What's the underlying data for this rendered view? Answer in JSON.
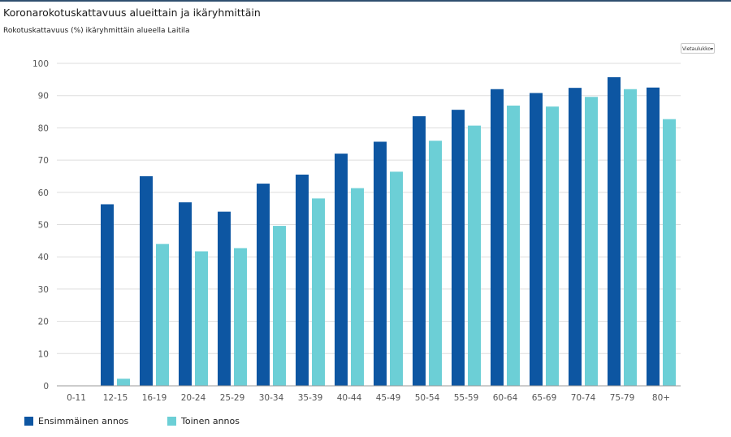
{
  "page_title": "Koronarokotuskattavuus alueittain ja ikäryhmittäin",
  "export_label": "Vietaulukko▾",
  "colors": {
    "first_dose": "#0d56a2",
    "second_dose": "#6ccfd6",
    "grid": "#dddddd",
    "axis": "#999999"
  },
  "chart_data": {
    "type": "bar",
    "title": "Rokotuskattavuus (%) ikäryhmittäin alueella Laitila",
    "xlabel": "",
    "ylabel": "",
    "ylim": [
      0,
      100
    ],
    "yticks": [
      0,
      10,
      20,
      30,
      40,
      50,
      60,
      70,
      80,
      90,
      100
    ],
    "grid": true,
    "legend_position": "bottom-left",
    "categories": [
      "0-11",
      "12-15",
      "16-19",
      "20-24",
      "25-29",
      "30-34",
      "35-39",
      "40-44",
      "45-49",
      "50-54",
      "55-59",
      "60-64",
      "65-69",
      "70-74",
      "75-79",
      "80+"
    ],
    "series": [
      {
        "name": "Ensimmäinen annos",
        "values": [
          0,
          56.3,
          65.0,
          56.9,
          54.0,
          62.7,
          65.5,
          72.0,
          75.7,
          83.6,
          85.6,
          92.0,
          90.8,
          92.4,
          95.7,
          92.5
        ]
      },
      {
        "name": "Toinen annos",
        "values": [
          0,
          2.2,
          44.0,
          41.7,
          42.7,
          49.6,
          58.1,
          61.3,
          66.4,
          76.0,
          80.7,
          86.9,
          86.6,
          89.6,
          92.0,
          82.7
        ]
      }
    ]
  }
}
